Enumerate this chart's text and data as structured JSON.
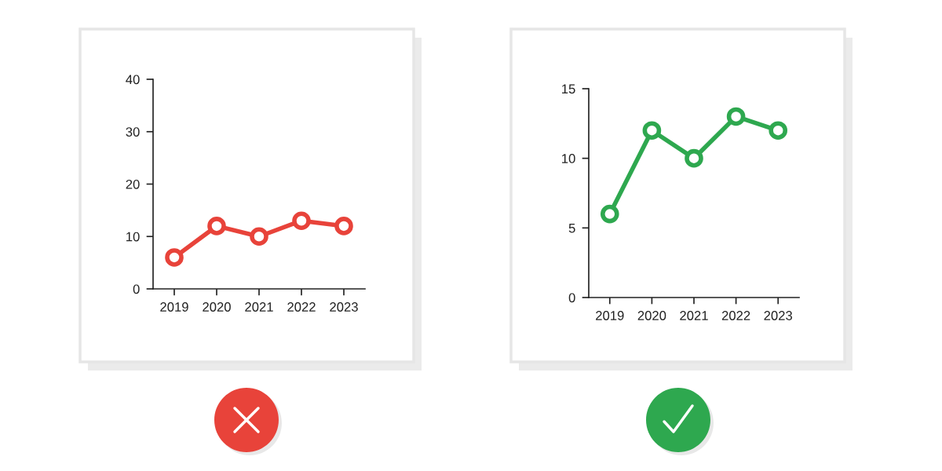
{
  "chart_data": [
    {
      "type": "line",
      "categories": [
        "2019",
        "2020",
        "2021",
        "2022",
        "2023"
      ],
      "ylim": [
        0,
        40
      ],
      "yticks": [
        0,
        10,
        20,
        30,
        40
      ],
      "marker": "circle",
      "grid": false,
      "series": [
        {
          "color": "#e8433a",
          "values": [
            6,
            12,
            10,
            13,
            12
          ]
        }
      ]
    },
    {
      "type": "line",
      "categories": [
        "2019",
        "2020",
        "2021",
        "2022",
        "2023"
      ],
      "ylim": [
        0,
        15
      ],
      "yticks": [
        0,
        5,
        10,
        15
      ],
      "marker": "circle",
      "grid": false,
      "series": [
        {
          "color": "#2ea84f",
          "values": [
            6,
            12,
            10,
            13,
            12
          ]
        }
      ]
    }
  ]
}
